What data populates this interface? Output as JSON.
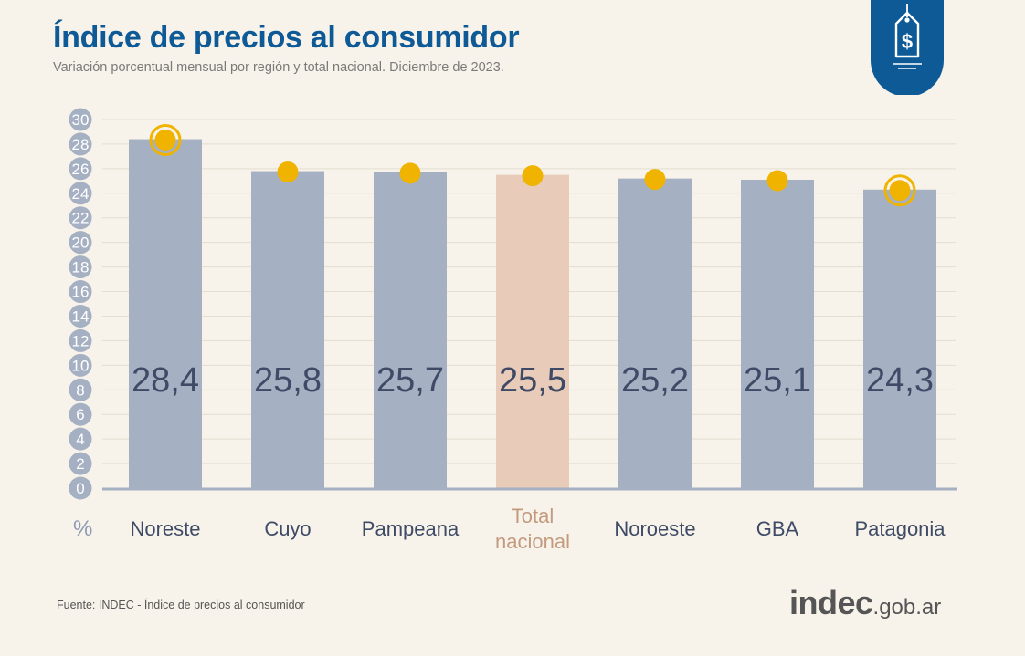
{
  "header": {
    "title": "Índice de precios al consumidor",
    "subtitle": "Variación porcentual mensual por región y total nacional. Diciembre de 2023."
  },
  "badge": {
    "icon": "price-tag-dollar-icon",
    "color": "#0e5a96"
  },
  "chart_data": {
    "type": "bar",
    "categories": [
      "Noreste",
      "Cuyo",
      "Pampeana",
      "Total nacional",
      "Noroeste",
      "GBA",
      "Patagonia"
    ],
    "category_label_lines": [
      [
        "Noreste"
      ],
      [
        "Cuyo"
      ],
      [
        "Pampeana"
      ],
      [
        "Total",
        "nacional"
      ],
      [
        "Noroeste"
      ],
      [
        "GBA"
      ],
      [
        "Patagonia"
      ]
    ],
    "values": [
      28.4,
      25.8,
      25.7,
      25.5,
      25.2,
      25.1,
      24.3
    ],
    "value_labels": [
      "28,4",
      "25,8",
      "25,7",
      "25,5",
      "25,2",
      "25,1",
      "24,3"
    ],
    "highlight_index": 3,
    "ringed_marker_indices": [
      0,
      6
    ],
    "y_ticks": [
      0,
      2,
      4,
      6,
      8,
      10,
      12,
      14,
      16,
      18,
      20,
      22,
      24,
      26,
      28,
      30
    ],
    "ylim": [
      0,
      30
    ],
    "y_unit": "%",
    "grid": true,
    "colors": {
      "bar": "#a5b0c3",
      "bar_highlight": "#e8cbb8",
      "marker": "#f0b400",
      "tick_circle": "#a5b0c3",
      "value_text": "#3e4a66",
      "category_text": "#3e4a66",
      "category_highlight_text": "#c49a7f",
      "grid": "#e4ddd0",
      "axis": "#a5b0c3"
    }
  },
  "footer": {
    "source": "Fuente: INDEC - Índice de precios al consumidor",
    "brand_main": "indec",
    "brand_domain": ".gob.ar"
  }
}
